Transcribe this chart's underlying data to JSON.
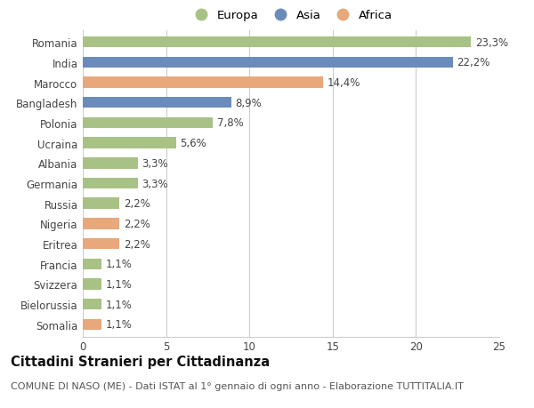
{
  "countries": [
    "Romania",
    "India",
    "Marocco",
    "Bangladesh",
    "Polonia",
    "Ucraina",
    "Albania",
    "Germania",
    "Russia",
    "Nigeria",
    "Eritrea",
    "Francia",
    "Svizzera",
    "Bielorussia",
    "Somalia"
  ],
  "values": [
    23.3,
    22.2,
    14.4,
    8.9,
    7.8,
    5.6,
    3.3,
    3.3,
    2.2,
    2.2,
    2.2,
    1.1,
    1.1,
    1.1,
    1.1
  ],
  "continents": [
    "Europa",
    "Asia",
    "Africa",
    "Asia",
    "Europa",
    "Europa",
    "Europa",
    "Europa",
    "Europa",
    "Africa",
    "Africa",
    "Europa",
    "Europa",
    "Europa",
    "Africa"
  ],
  "colors": {
    "Europa": "#a8c185",
    "Asia": "#6b8cba",
    "Africa": "#e8a87c"
  },
  "legend_order": [
    "Europa",
    "Asia",
    "Africa"
  ],
  "xlim": [
    0,
    25
  ],
  "xticks": [
    0,
    5,
    10,
    15,
    20,
    25
  ],
  "title": "Cittadini Stranieri per Cittadinanza",
  "subtitle": "COMUNE DI NASO (ME) - Dati ISTAT al 1° gennaio di ogni anno - Elaborazione TUTTITALIA.IT",
  "bg_color": "#ffffff",
  "grid_color": "#cccccc",
  "bar_height": 0.55,
  "label_fontsize": 8.5,
  "tick_fontsize": 8.5,
  "title_fontsize": 10.5,
  "subtitle_fontsize": 8.0
}
